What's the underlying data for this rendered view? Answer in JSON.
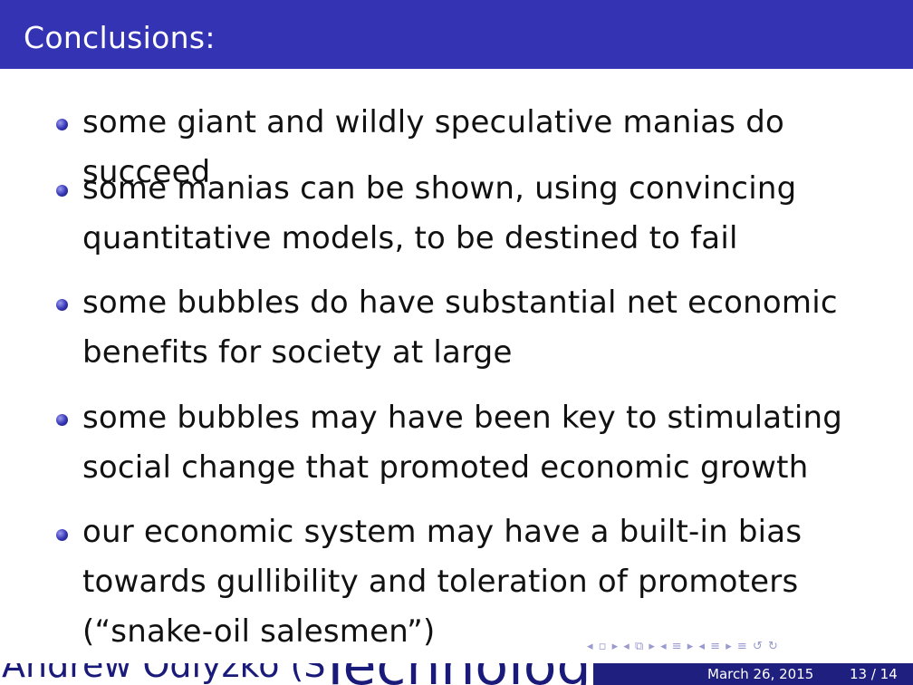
{
  "slide": {
    "title": "Conclusions:",
    "bullets": [
      "some giant and wildly speculative manias do succeed",
      "some manias can be shown, using convincing quantitative models, to be destined to fail",
      "some bubbles do have substantial net economic benefits for society at large",
      "some bubbles may have been key to stimulating social change that promoted economic growth",
      "our economic system may have a built-in bias towards gullibility and toleration of promoters (“snake-oil salesmen”)"
    ]
  },
  "footer": {
    "author": "Andrew Odlyzko (S",
    "title_fragment": "Technology",
    "date": "March 26, 2015",
    "page": "13 / 14"
  },
  "navigation": {
    "icons": [
      "◂",
      "▫",
      "▸",
      "◂",
      "⧉",
      "▸",
      "◂",
      "≡",
      "▸",
      "◂",
      "≡",
      "▸",
      "≡",
      "↺",
      "↻"
    ]
  },
  "colors": {
    "title_bar": "#3333b3",
    "footer_dark": "#1f1f80",
    "bullet": "#3333b3"
  }
}
